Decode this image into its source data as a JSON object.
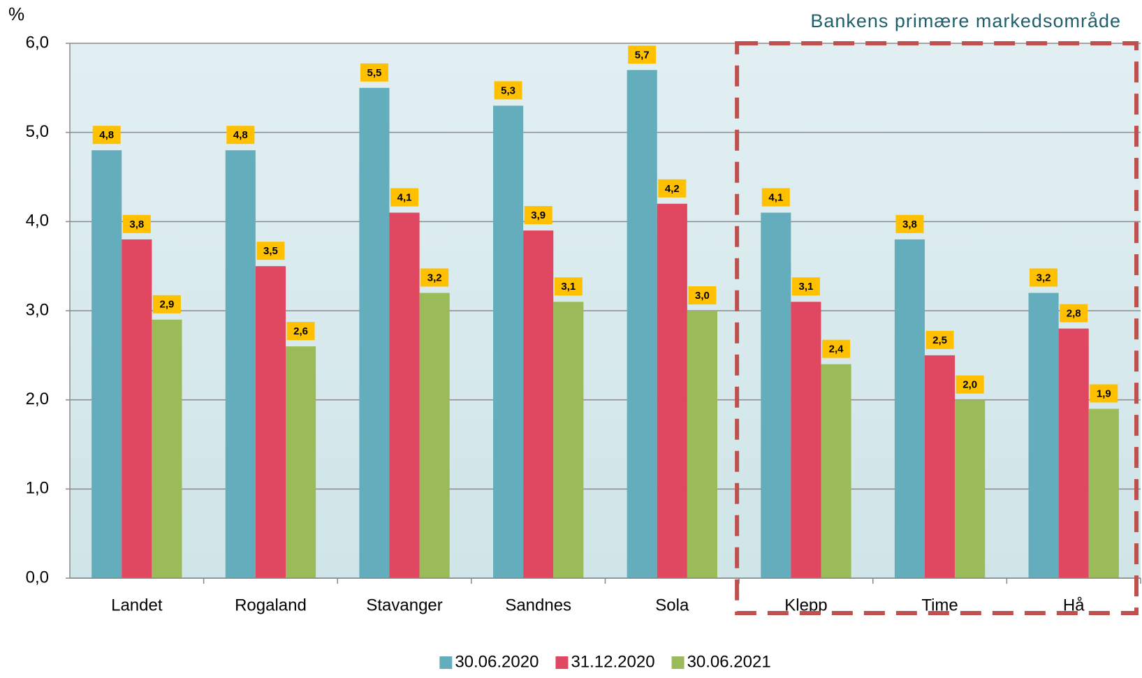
{
  "chart_data": {
    "type": "bar",
    "unit_label": "%",
    "annotation": "Bankens primære markedsområde",
    "categories": [
      "Landet",
      "Rogaland",
      "Stavanger",
      "Sandnes",
      "Sola",
      "Klepp",
      "Time",
      "Hå"
    ],
    "series": [
      {
        "name": "30.06.2020",
        "color": "#63adbc",
        "values": [
          4.8,
          4.8,
          5.5,
          5.3,
          5.7,
          4.1,
          3.8,
          3.2
        ],
        "value_labels": [
          "4,8",
          "4,8",
          "5,5",
          "5,3",
          "5,7",
          "4,1",
          "3,8",
          "3,2"
        ]
      },
      {
        "name": "31.12.2020",
        "color": "#e04862",
        "values": [
          3.8,
          3.5,
          4.1,
          3.9,
          4.2,
          3.1,
          2.5,
          2.8
        ],
        "value_labels": [
          "3,8",
          "3,5",
          "4,1",
          "3,9",
          "4,2",
          "3,1",
          "2,5",
          "2,8"
        ]
      },
      {
        "name": "30.06.2021",
        "color": "#9bbb59",
        "values": [
          2.9,
          2.6,
          3.2,
          3.1,
          3.0,
          2.4,
          2.0,
          1.9
        ],
        "value_labels": [
          "2,9",
          "2,6",
          "3,2",
          "3,1",
          "3,0",
          "2,4",
          "2,0",
          "1,9"
        ]
      }
    ],
    "ylim": [
      0,
      6
    ],
    "yticks": [
      {
        "value": 0,
        "label": "0,0"
      },
      {
        "value": 1,
        "label": "1,0"
      },
      {
        "value": 2,
        "label": "2,0"
      },
      {
        "value": 3,
        "label": "3,0"
      },
      {
        "value": 4,
        "label": "4,0"
      },
      {
        "value": 5,
        "label": "5,0"
      },
      {
        "value": 6,
        "label": "6,0"
      }
    ],
    "grid": true
  }
}
